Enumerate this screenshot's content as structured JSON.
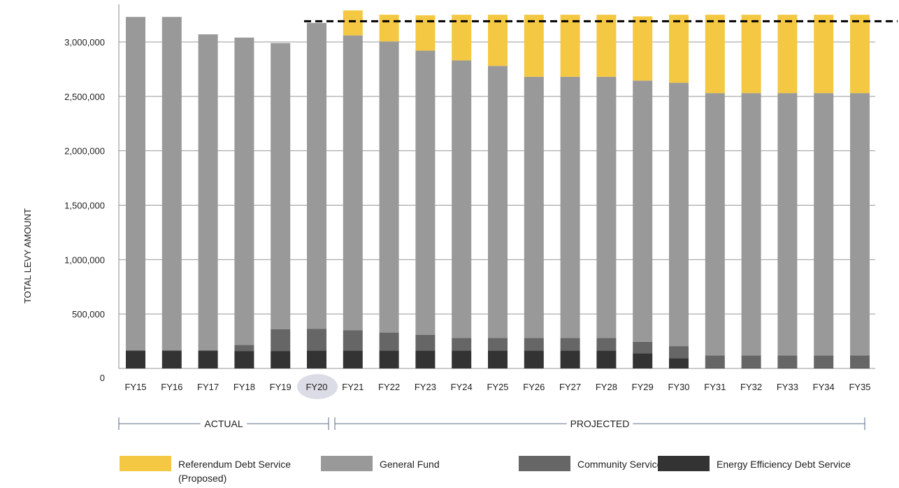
{
  "chart_data": {
    "type": "bar",
    "stacked": true,
    "ylabel": "TOTAL LEVY AMOUNT",
    "ylim": [
      0,
      3300000
    ],
    "yticks": [
      0,
      500000,
      1000000,
      1500000,
      2000000,
      2500000,
      3000000
    ],
    "ytick_labels": [
      "0",
      "500,000",
      "1,000,000",
      "1,500,000",
      "2,000,000",
      "2,500,000",
      "3,000,000"
    ],
    "grid": true,
    "legend_position": "bottom",
    "highlight_category": "FY20",
    "reference_line": {
      "value": 3190000,
      "from_category": "FY20",
      "style": "dashed"
    },
    "categories": [
      "FY15",
      "FY16",
      "FY17",
      "FY18",
      "FY19",
      "FY20",
      "FY21",
      "FY22",
      "FY23",
      "FY24",
      "FY25",
      "FY26",
      "FY27",
      "FY28",
      "FY29",
      "FY30",
      "FY31",
      "FY32",
      "FY33",
      "FY34",
      "FY35"
    ],
    "series": [
      {
        "name": "Energy Efficiency Debt Service",
        "color": "#333333",
        "values": [
          165000,
          165000,
          165000,
          160000,
          160000,
          165000,
          165000,
          165000,
          165000,
          165000,
          165000,
          165000,
          165000,
          165000,
          140000,
          95000,
          5000,
          5000,
          5000,
          5000,
          5000
        ]
      },
      {
        "name": "Community Service Fund",
        "color": "#666666",
        "values": [
          0,
          0,
          0,
          55000,
          200000,
          200000,
          185000,
          165000,
          145000,
          115000,
          115000,
          115000,
          115000,
          115000,
          105000,
          110000,
          115000,
          115000,
          115000,
          115000,
          115000
        ]
      },
      {
        "name": "General Fund",
        "color": "#999999",
        "values": [
          3065000,
          3065000,
          2905000,
          2825000,
          2630000,
          2810000,
          2710000,
          2675000,
          2610000,
          2550000,
          2500000,
          2400000,
          2400000,
          2400000,
          2400000,
          2420000,
          2410000,
          2410000,
          2410000,
          2410000,
          2410000
        ]
      },
      {
        "name": "Referendum Debt Service (Proposed)",
        "color": "#F4C842",
        "values": [
          0,
          0,
          0,
          0,
          0,
          0,
          230000,
          245000,
          325000,
          420000,
          470000,
          570000,
          570000,
          570000,
          590000,
          625000,
          720000,
          720000,
          720000,
          720000,
          720000
        ]
      }
    ],
    "sections": [
      {
        "label": "ACTUAL",
        "from": "FY15",
        "to": "FY20"
      },
      {
        "label": "PROJECTED",
        "from": "FY21",
        "to": "FY35"
      }
    ],
    "legend": [
      {
        "label": "Referendum Debt Service",
        "label2": "(Proposed)",
        "color": "#F4C842"
      },
      {
        "label": "General Fund",
        "color": "#999999"
      },
      {
        "label": "Community Service Fund",
        "color": "#666666"
      },
      {
        "label": "Energy Efficiency Debt Service",
        "color": "#333333"
      }
    ]
  }
}
